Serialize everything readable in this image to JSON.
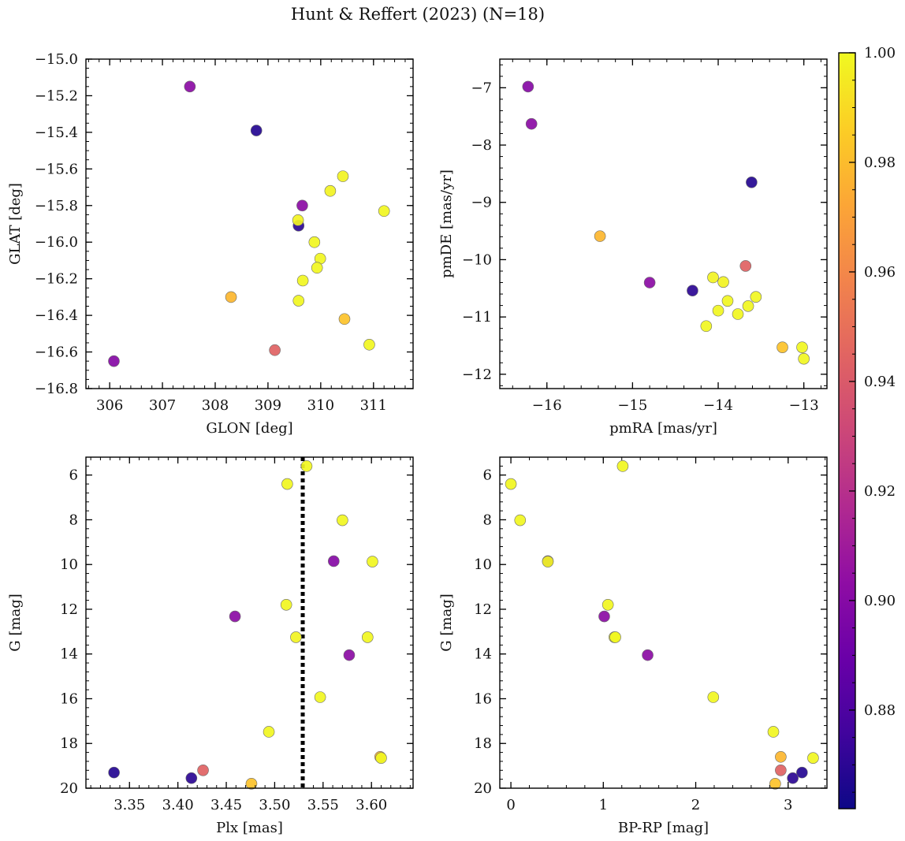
{
  "figure": {
    "title": "Hunt & Reffert (2023) (N=18)",
    "colorbar": {
      "colormap": "plasma",
      "min": 0.862,
      "max": 1.0,
      "ticks": [
        0.88,
        0.9,
        0.92,
        0.94,
        0.96,
        0.98,
        1.0
      ],
      "tick_labels": [
        "0.88",
        "0.90",
        "0.92",
        "0.94",
        "0.96",
        "0.98",
        "1.00"
      ]
    }
  },
  "chart_data": [
    {
      "type": "scatter",
      "title": "",
      "xlabel": "GLON [deg]",
      "ylabel": "GLAT [deg]",
      "xlim": [
        305.55,
        311.75
      ],
      "ylim": [
        -16.8,
        -15.0
      ],
      "y_inverted": false,
      "xticks": [
        306,
        307,
        308,
        309,
        310,
        311
      ],
      "xtick_labels": [
        "306",
        "307",
        "308",
        "309",
        "310",
        "311"
      ],
      "yticks": [
        -15.0,
        -15.2,
        -15.4,
        -15.6,
        -15.8,
        -16.0,
        -16.2,
        -16.4,
        -16.6,
        -16.8
      ],
      "ytick_labels": [
        "−15.0",
        "−15.2",
        "−15.4",
        "−15.6",
        "−15.8",
        "−16.0",
        "−16.2",
        "−16.4",
        "−16.6",
        "−16.8"
      ],
      "x_minor_step": 0.2,
      "y_minor_step": 0.05,
      "grid": false,
      "points": [
        {
          "x": 306.08,
          "y": -16.65,
          "c": 0.9
        },
        {
          "x": 307.52,
          "y": -15.15,
          "c": 0.902
        },
        {
          "x": 308.78,
          "y": -15.39,
          "c": 0.868
        },
        {
          "x": 309.58,
          "y": -15.91,
          "c": 0.87
        },
        {
          "x": 309.65,
          "y": -15.8,
          "c": 0.902
        },
        {
          "x": 309.13,
          "y": -16.59,
          "c": 0.944
        },
        {
          "x": 308.3,
          "y": -16.3,
          "c": 0.978
        },
        {
          "x": 310.45,
          "y": -16.42,
          "c": 0.982
        },
        {
          "x": 309.57,
          "y": -15.88,
          "c": 0.998
        },
        {
          "x": 310.42,
          "y": -15.64,
          "c": 0.998
        },
        {
          "x": 310.18,
          "y": -15.72,
          "c": 0.998
        },
        {
          "x": 311.2,
          "y": -15.83,
          "c": 0.999
        },
        {
          "x": 309.88,
          "y": -16.0,
          "c": 0.999
        },
        {
          "x": 309.99,
          "y": -16.09,
          "c": 0.999
        },
        {
          "x": 309.93,
          "y": -16.14,
          "c": 0.999
        },
        {
          "x": 309.66,
          "y": -16.21,
          "c": 0.999
        },
        {
          "x": 309.58,
          "y": -16.32,
          "c": 0.999
        },
        {
          "x": 310.92,
          "y": -16.56,
          "c": 0.999
        }
      ]
    },
    {
      "type": "scatter",
      "title": "",
      "xlabel": "pmRA [mas/yr]",
      "ylabel": "pmDE [mas/yr]",
      "xlim": [
        -16.55,
        -12.73
      ],
      "ylim": [
        -12.25,
        -6.5
      ],
      "y_inverted": false,
      "xticks": [
        -16,
        -15,
        -14,
        -13
      ],
      "xtick_labels": [
        "−16",
        "−15",
        "−14",
        "−13"
      ],
      "yticks": [
        -12,
        -11,
        -10,
        -9,
        -8,
        -7
      ],
      "ytick_labels": [
        "−12",
        "−11",
        "−10",
        "−9",
        "−8",
        "−7"
      ],
      "x_minor_step": 0.2,
      "y_minor_step": 0.2,
      "grid": false,
      "points": [
        {
          "x": -16.22,
          "y": -6.98,
          "c": 0.9
        },
        {
          "x": -16.18,
          "y": -7.63,
          "c": 0.902
        },
        {
          "x": -13.61,
          "y": -8.65,
          "c": 0.868
        },
        {
          "x": -15.38,
          "y": -9.59,
          "c": 0.978
        },
        {
          "x": -13.68,
          "y": -10.11,
          "c": 0.944
        },
        {
          "x": -14.8,
          "y": -10.4,
          "c": 0.902
        },
        {
          "x": -14.3,
          "y": -10.54,
          "c": 0.87
        },
        {
          "x": -14.06,
          "y": -10.31,
          "c": 0.998
        },
        {
          "x": -13.94,
          "y": -10.39,
          "c": 0.998
        },
        {
          "x": -13.89,
          "y": -10.72,
          "c": 0.999
        },
        {
          "x": -13.56,
          "y": -10.65,
          "c": 0.999
        },
        {
          "x": -13.65,
          "y": -10.81,
          "c": 0.999
        },
        {
          "x": -14.0,
          "y": -10.89,
          "c": 0.999
        },
        {
          "x": -13.77,
          "y": -10.95,
          "c": 0.999
        },
        {
          "x": -14.14,
          "y": -11.16,
          "c": 0.999
        },
        {
          "x": -13.25,
          "y": -11.53,
          "c": 0.982
        },
        {
          "x": -13.02,
          "y": -11.53,
          "c": 0.999
        },
        {
          "x": -13.0,
          "y": -11.73,
          "c": 0.999
        }
      ]
    },
    {
      "type": "scatter",
      "title": "",
      "xlabel": "Plx [mas]",
      "ylabel": "G [mag]",
      "xlim": [
        3.305,
        3.643
      ],
      "ylim": [
        5.2,
        20.0
      ],
      "y_inverted": true,
      "xticks": [
        3.35,
        3.4,
        3.45,
        3.5,
        3.55,
        3.6
      ],
      "xtick_labels": [
        "3.35",
        "3.40",
        "3.45",
        "3.50",
        "3.55",
        "3.60"
      ],
      "yticks": [
        6,
        8,
        10,
        12,
        14,
        16,
        18,
        20
      ],
      "ytick_labels": [
        "6",
        "8",
        "10",
        "12",
        "14",
        "16",
        "18",
        "20"
      ],
      "x_minor_step": 0.01,
      "y_minor_step": 0.4,
      "grid": false,
      "vertical_line": {
        "x": 3.529,
        "style": "dotted",
        "color": "#000000"
      },
      "points": [
        {
          "x": 3.334,
          "y": 19.3,
          "c": 0.868
        },
        {
          "x": 3.414,
          "y": 19.55,
          "c": 0.87
        },
        {
          "x": 3.426,
          "y": 19.2,
          "c": 0.944
        },
        {
          "x": 3.459,
          "y": 12.32,
          "c": 0.902
        },
        {
          "x": 3.476,
          "y": 19.8,
          "c": 0.982
        },
        {
          "x": 3.494,
          "y": 17.48,
          "c": 0.999
        },
        {
          "x": 3.512,
          "y": 11.8,
          "c": 0.999
        },
        {
          "x": 3.513,
          "y": 6.4,
          "c": 0.999
        },
        {
          "x": 3.522,
          "y": 13.25,
          "c": 0.998
        },
        {
          "x": 3.533,
          "y": 5.6,
          "c": 0.999
        },
        {
          "x": 3.547,
          "y": 15.93,
          "c": 0.999
        },
        {
          "x": 3.561,
          "y": 9.85,
          "c": 0.9
        },
        {
          "x": 3.57,
          "y": 8.02,
          "c": 0.999
        },
        {
          "x": 3.577,
          "y": 14.05,
          "c": 0.902
        },
        {
          "x": 3.596,
          "y": 13.25,
          "c": 0.999
        },
        {
          "x": 3.601,
          "y": 9.87,
          "c": 0.999
        },
        {
          "x": 3.609,
          "y": 18.6,
          "c": 0.978
        },
        {
          "x": 3.61,
          "y": 18.65,
          "c": 0.999
        }
      ]
    },
    {
      "type": "scatter",
      "title": "",
      "xlabel": "BP-RP [mag]",
      "ylabel": "G [mag]",
      "xlim": [
        -0.12,
        3.42
      ],
      "ylim": [
        5.2,
        20.0
      ],
      "y_inverted": true,
      "xticks": [
        0,
        1,
        2,
        3
      ],
      "xtick_labels": [
        "0",
        "1",
        "2",
        "3"
      ],
      "yticks": [
        6,
        8,
        10,
        12,
        14,
        16,
        18,
        20
      ],
      "ytick_labels": [
        "6",
        "8",
        "10",
        "12",
        "14",
        "16",
        "18",
        "20"
      ],
      "x_minor_step": 0.2,
      "y_minor_step": 0.4,
      "grid": false,
      "points": [
        {
          "x": 0.0,
          "y": 6.4,
          "c": 0.999
        },
        {
          "x": 0.1,
          "y": 8.02,
          "c": 0.999
        },
        {
          "x": 0.4,
          "y": 9.85,
          "c": 0.9
        },
        {
          "x": 0.4,
          "y": 9.87,
          "c": 0.999
        },
        {
          "x": 1.21,
          "y": 5.6,
          "c": 0.999
        },
        {
          "x": 1.05,
          "y": 11.8,
          "c": 0.999
        },
        {
          "x": 1.01,
          "y": 12.32,
          "c": 0.902
        },
        {
          "x": 1.12,
          "y": 13.25,
          "c": 0.998
        },
        {
          "x": 1.13,
          "y": 13.25,
          "c": 0.999
        },
        {
          "x": 1.48,
          "y": 14.05,
          "c": 0.902
        },
        {
          "x": 2.19,
          "y": 15.93,
          "c": 0.999
        },
        {
          "x": 2.84,
          "y": 17.48,
          "c": 0.999
        },
        {
          "x": 2.92,
          "y": 18.6,
          "c": 0.978
        },
        {
          "x": 3.27,
          "y": 18.65,
          "c": 0.999
        },
        {
          "x": 2.92,
          "y": 19.2,
          "c": 0.944
        },
        {
          "x": 3.15,
          "y": 19.3,
          "c": 0.868
        },
        {
          "x": 3.05,
          "y": 19.55,
          "c": 0.87
        },
        {
          "x": 2.86,
          "y": 19.8,
          "c": 0.982
        }
      ]
    }
  ]
}
